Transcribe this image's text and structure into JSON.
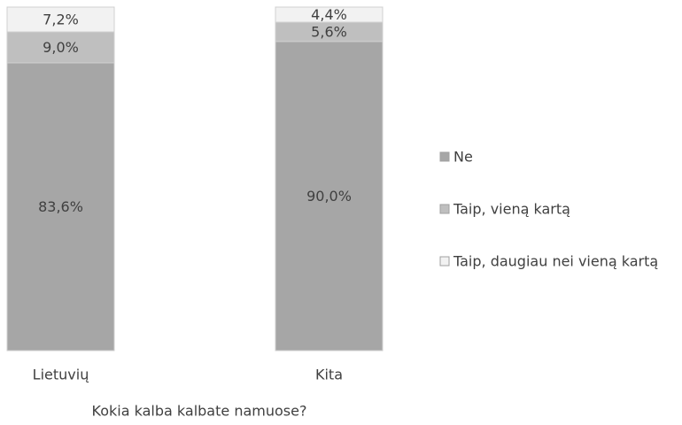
{
  "chart_data": {
    "type": "stacked_bar",
    "categories": [
      "Lietuvių",
      "Kita"
    ],
    "x_label": "Kokia kalba kalbate namuose?",
    "series": [
      {
        "name": "Ne",
        "color": "#a6a6a6",
        "values": [
          83.6,
          90.0
        ],
        "value_labels": [
          "83,6%",
          "90,0%"
        ]
      },
      {
        "name": "Taip, vieną kartą",
        "color": "#bfbfbf",
        "values": [
          9.0,
          5.6
        ],
        "value_labels": [
          "9,0%",
          "5,6%"
        ]
      },
      {
        "name": "Taip, daugiau nei vieną kartą",
        "color": "#f2f2f2",
        "values": [
          7.2,
          4.4
        ],
        "value_labels": [
          "7,2%",
          "4,4%"
        ]
      }
    ],
    "legend": "right"
  }
}
